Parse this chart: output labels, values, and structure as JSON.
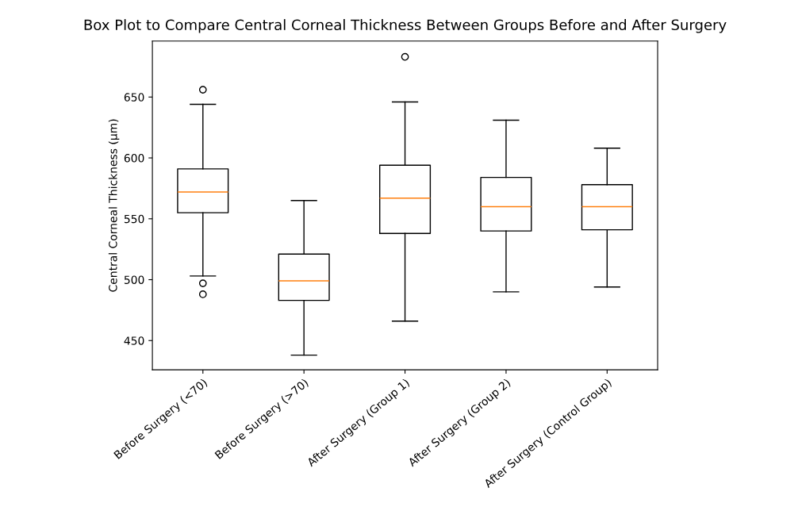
{
  "chart_data": {
    "type": "box",
    "title": "Box Plot to Compare Central Corneal Thickness Between Groups Before and After Surgery",
    "ylabel": "Central Corneal Thickness (µm)",
    "categories": [
      "Before Surgery (<70)",
      "Before Surgery (>70)",
      "After Surgery (Group 1)",
      "After Surgery (Group 2)",
      "After Surgery (Control Group)"
    ],
    "boxes": [
      {
        "low": 503,
        "q1": 555,
        "median": 572,
        "q3": 591,
        "high": 644,
        "outliers": [
          656,
          497,
          488
        ]
      },
      {
        "low": 438,
        "q1": 483,
        "median": 499,
        "q3": 521,
        "high": 565
      },
      {
        "low": 466,
        "q1": 538,
        "median": 567,
        "q3": 594,
        "high": 646,
        "outliers": [
          683
        ]
      },
      {
        "low": 490,
        "q1": 540,
        "median": 560,
        "q3": 584,
        "high": 631
      },
      {
        "low": 494,
        "q1": 541,
        "median": 560,
        "q3": 578,
        "high": 608
      }
    ],
    "color": "#000000",
    "ylim": [
      426,
      696
    ],
    "yticks": [
      450,
      500,
      550,
      600,
      650
    ],
    "grid": false
  }
}
